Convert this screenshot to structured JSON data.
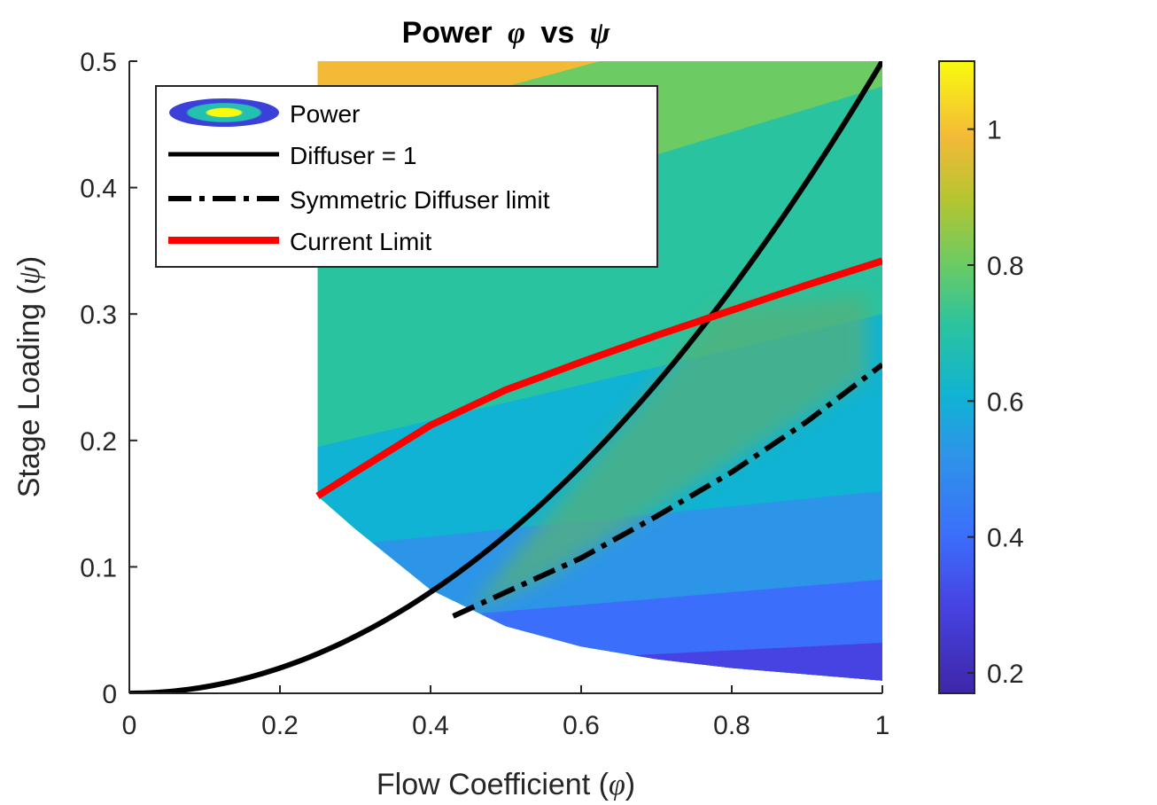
{
  "chart_data": {
    "type": "contour",
    "title": "Power",
    "title_sym_x": "φ",
    "title_mid": "vs",
    "title_sym_y": "ψ",
    "xlabel": "Flow Coefficient (",
    "xlabel_sym": "φ",
    "xlabel_end": ")",
    "ylabel": "Stage Loading (",
    "ylabel_sym": "ψ",
    "ylabel_end": ")",
    "xlim": [
      0,
      1
    ],
    "ylim": [
      0,
      0.5
    ],
    "x_ticks": [
      "0",
      "0.2",
      "0.4",
      "0.6",
      "0.8",
      "1"
    ],
    "y_ticks": [
      "0",
      "0.1",
      "0.2",
      "0.3",
      "0.4",
      "0.5"
    ],
    "colorbar": {
      "range": [
        0.17,
        1.1
      ],
      "ticks": [
        "0.2",
        "0.4",
        "0.6",
        "0.8",
        "1"
      ],
      "colormap": "parula"
    },
    "series": [
      {
        "name": "Power",
        "kind": "filled-contour",
        "levels": [
          0.17,
          0.3,
          0.4,
          0.5,
          0.6,
          0.7,
          0.8,
          0.9,
          1.0,
          1.1
        ],
        "x": [
          0.25,
          0.3,
          0.4,
          0.5,
          0.6,
          0.7,
          0.8,
          0.9,
          1.0
        ],
        "lower_boundary_psi": [
          0.156,
          0.13,
          0.082,
          0.053,
          0.037,
          0.027,
          0.02,
          0.015,
          0.01
        ]
      },
      {
        "name": "Diffuser = 1",
        "kind": "line",
        "style": "solid",
        "color": "#000000",
        "x": [
          0,
          0.1,
          0.2,
          0.3,
          0.4,
          0.5,
          0.6,
          0.7,
          0.8,
          0.9,
          1.0
        ],
        "y": [
          0,
          0.005,
          0.02,
          0.045,
          0.08,
          0.125,
          0.18,
          0.245,
          0.32,
          0.405,
          0.5
        ]
      },
      {
        "name": "Symmetric Diffuser limit",
        "kind": "line",
        "style": "dashdot",
        "color": "#000000",
        "x": [
          0.43,
          0.5,
          0.6,
          0.7,
          0.8,
          0.9,
          1.0
        ],
        "y": [
          0.061,
          0.08,
          0.107,
          0.14,
          0.175,
          0.215,
          0.26
        ]
      },
      {
        "name": "Current Limit",
        "kind": "line",
        "style": "solid",
        "color": "#ff0000",
        "x": [
          0.25,
          0.3,
          0.4,
          0.5,
          0.6,
          0.7,
          0.8,
          0.9,
          1.0
        ],
        "y": [
          0.156,
          0.175,
          0.212,
          0.24,
          0.262,
          0.283,
          0.303,
          0.323,
          0.342
        ]
      }
    ],
    "legend": {
      "position": "top-left",
      "entries": [
        "Power",
        "Diffuser = 1",
        "Symmetric Diffuser limit",
        "Current Limit"
      ]
    },
    "grid": false
  }
}
